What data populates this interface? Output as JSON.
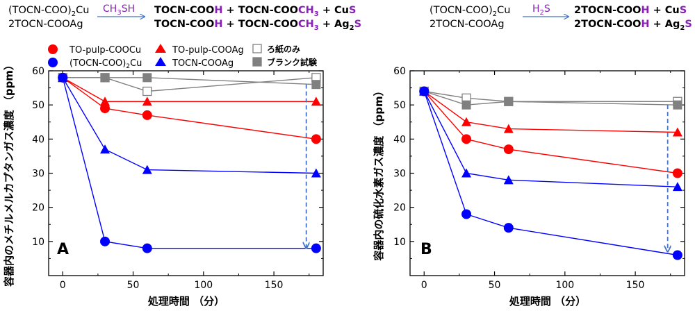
{
  "reactions": {
    "left": {
      "line1_lhs": [
        "(TOCN-COO)",
        "2",
        "Cu"
      ],
      "line2_lhs": "2TOCN-COOAg",
      "reagent": [
        "CH",
        "3",
        "SH"
      ],
      "line1_rhs": [
        [
          "TOCN-COO",
          "#000000"
        ],
        [
          "H",
          "#8a1fb8"
        ],
        [
          " + TOCN-COO",
          "#000000"
        ],
        [
          "CH",
          "#8a1fb8"
        ],
        [
          "3",
          "#8a1fb8",
          "sub"
        ],
        [
          " + Cu",
          "#000000"
        ],
        [
          "S",
          "#8a1fb8"
        ]
      ],
      "line2_rhs": [
        [
          "TOCN-COO",
          "#000000"
        ],
        [
          "H",
          "#8a1fb8"
        ],
        [
          " + TOCN-COO",
          "#000000"
        ],
        [
          "CH",
          "#8a1fb8"
        ],
        [
          "3",
          "#8a1fb8",
          "sub"
        ],
        [
          " + Ag",
          "#000000"
        ],
        [
          "2",
          "#000000",
          "sub"
        ],
        [
          "S",
          "#8a1fb8"
        ]
      ]
    },
    "right": {
      "line1_lhs": [
        "(TOCN-COO)",
        "2",
        "Cu"
      ],
      "line2_lhs": "2TOCN-COOAg",
      "reagent": [
        "H",
        "2",
        "S"
      ],
      "line1_rhs": [
        [
          "2TOCN-COO",
          "#000000"
        ],
        [
          "H",
          "#8a1fb8"
        ],
        [
          " + Cu",
          "#000000"
        ],
        [
          "S",
          "#8a1fb8"
        ]
      ],
      "line2_rhs": [
        [
          "2TOCN-COO",
          "#000000"
        ],
        [
          "H",
          "#8a1fb8"
        ],
        [
          " + Ag",
          "#000000"
        ],
        [
          "2",
          "#000000",
          "sub"
        ],
        [
          "S",
          "#8a1fb8"
        ]
      ]
    }
  },
  "legend": {
    "to_pulp_cu": "TO-pulp-COOCu",
    "tocn_cu": [
      "(TOCN-COO)",
      "2",
      "Cu"
    ],
    "to_pulp_ag": "TO-pulp-COOAg",
    "tocn_ag": "TOCN-COOAg",
    "filter_paper": "ろ紙のみ",
    "blank": "ブランク試験"
  },
  "colors": {
    "red": "#ff0000",
    "blue": "#0000ff",
    "gray_line": "#808080",
    "gray_fill": "#808080",
    "purple": "#8a1fb8",
    "arrow": "#4472c4"
  },
  "chart_data": [
    {
      "type": "line",
      "panel_label": "A",
      "xlabel": "処理時間 （分）",
      "ylabel": "容器内のメチルメルカプタンガス濃度 （ppm）",
      "xlim": [
        -10,
        185
      ],
      "ylim": [
        0,
        60
      ],
      "xticks": [
        0,
        50,
        100,
        150
      ],
      "yticks": [
        10,
        20,
        30,
        40,
        50,
        60
      ],
      "series": [
        {
          "name": "ろ紙のみ",
          "marker": "square-open",
          "color": "#808080",
          "x": [
            0,
            30,
            60,
            180
          ],
          "y": [
            58,
            58,
            54,
            58
          ]
        },
        {
          "name": "ブランク試験",
          "marker": "square",
          "color": "#808080",
          "x": [
            0,
            30,
            60,
            180
          ],
          "y": [
            58,
            58,
            58,
            56
          ]
        },
        {
          "name": "TO-pulp-COOAg",
          "marker": "triangle",
          "color": "#ff0000",
          "x": [
            0,
            30,
            60,
            180
          ],
          "y": [
            58,
            51,
            51,
            51
          ]
        },
        {
          "name": "TO-pulp-COOCu",
          "marker": "circle",
          "color": "#ff0000",
          "x": [
            0,
            30,
            60,
            180
          ],
          "y": [
            58,
            49,
            47,
            40
          ]
        },
        {
          "name": "TOCN-COOAg",
          "marker": "triangle",
          "color": "#0000ff",
          "x": [
            0,
            30,
            60,
            180
          ],
          "y": [
            58,
            37,
            31,
            30
          ]
        },
        {
          "name": "(TOCN-COO)2Cu",
          "marker": "circle",
          "color": "#0000ff",
          "x": [
            0,
            30,
            60,
            180
          ],
          "y": [
            58,
            10,
            8,
            8
          ]
        }
      ],
      "annotation_arrow": {
        "x": 173,
        "y_from": 56,
        "y_to": 8
      }
    },
    {
      "type": "line",
      "panel_label": "B",
      "xlabel": "処理時間 （分）",
      "ylabel": "容器内の硫化水素ガス濃度 （ppm）",
      "xlim": [
        -10,
        185
      ],
      "ylim": [
        0,
        60
      ],
      "xticks": [
        0,
        50,
        100,
        150
      ],
      "yticks": [
        10,
        20,
        30,
        40,
        50,
        60
      ],
      "series": [
        {
          "name": "ろ紙のみ",
          "marker": "square-open",
          "color": "#808080",
          "x": [
            0,
            30,
            60,
            180
          ],
          "y": [
            54,
            52,
            51,
            51
          ]
        },
        {
          "name": "ブランク試験",
          "marker": "square",
          "color": "#808080",
          "x": [
            0,
            30,
            60,
            180
          ],
          "y": [
            54,
            50,
            51,
            50
          ]
        },
        {
          "name": "TO-pulp-COOAg",
          "marker": "triangle",
          "color": "#ff0000",
          "x": [
            0,
            30,
            60,
            180
          ],
          "y": [
            54,
            45,
            43,
            42
          ]
        },
        {
          "name": "TO-pulp-COOCu",
          "marker": "circle",
          "color": "#ff0000",
          "x": [
            0,
            30,
            60,
            180
          ],
          "y": [
            54,
            40,
            37,
            30
          ]
        },
        {
          "name": "TOCN-COOAg",
          "marker": "triangle",
          "color": "#0000ff",
          "x": [
            0,
            30,
            60,
            180
          ],
          "y": [
            54,
            30,
            28,
            26
          ]
        },
        {
          "name": "(TOCN-COO)2Cu",
          "marker": "circle",
          "color": "#0000ff",
          "x": [
            0,
            30,
            60,
            180
          ],
          "y": [
            54,
            18,
            14,
            6
          ]
        }
      ],
      "annotation_arrow": {
        "x": 173,
        "y_from": 50,
        "y_to": 7
      }
    }
  ]
}
